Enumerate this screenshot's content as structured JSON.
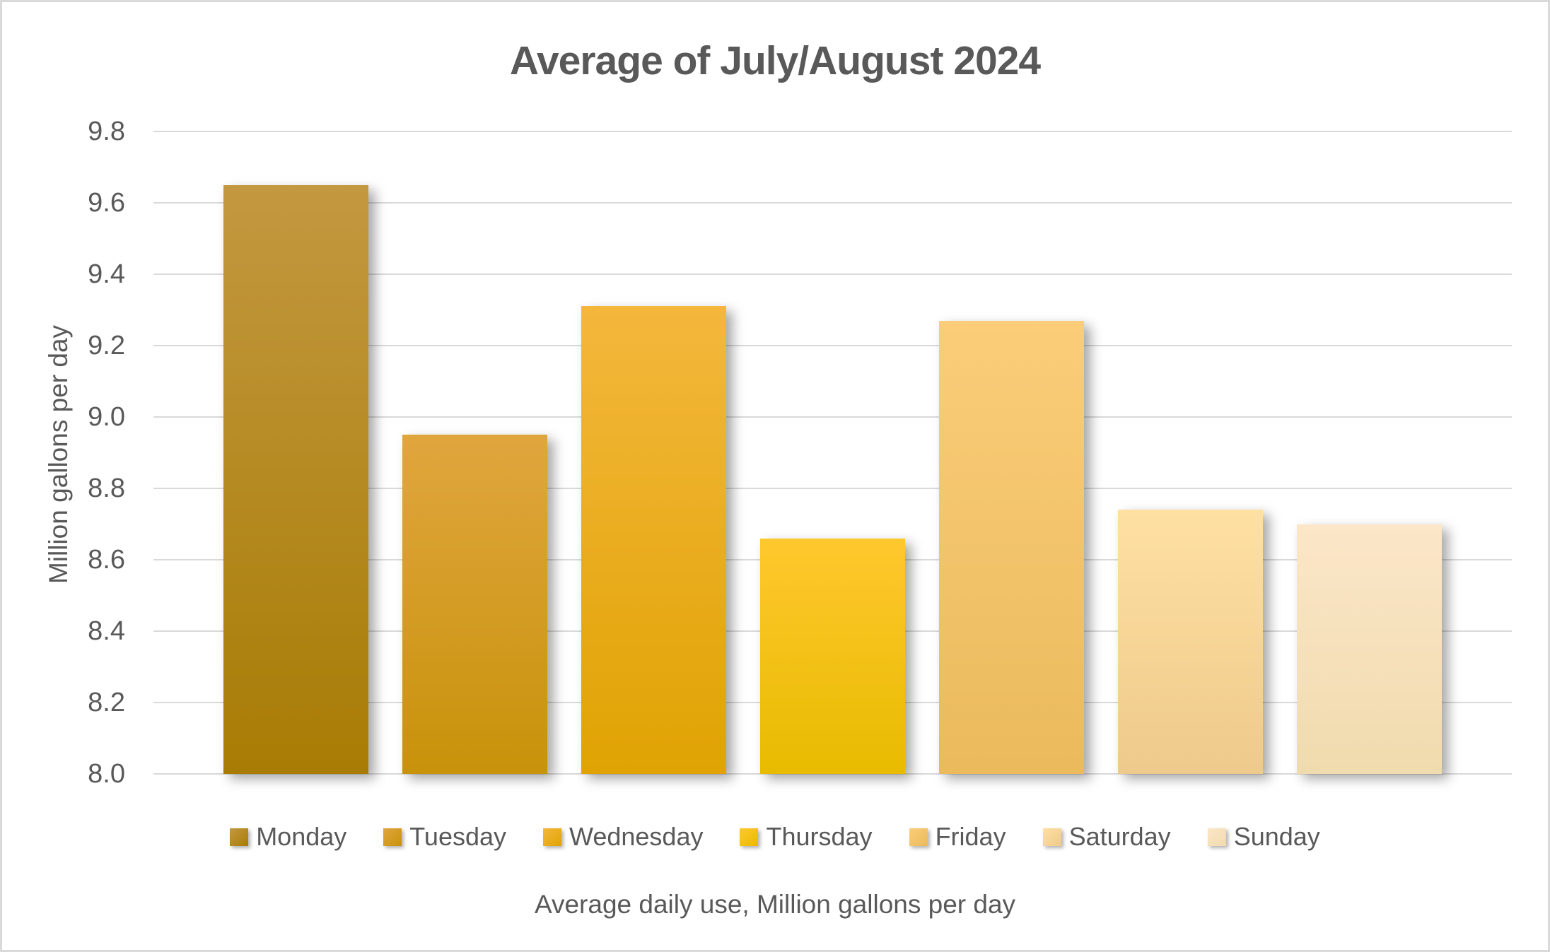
{
  "frame": {
    "border_color": "#D9D9D9",
    "background_color": "#FFFFFF",
    "grid_color": "#D9D9D9",
    "text_color": "#595959"
  },
  "chart_data": {
    "type": "bar",
    "title": "Average of July/August 2024",
    "ylabel": "Million gallons per day",
    "xlabel": "Average daily use, Million gallons per day",
    "ylim": [
      8.0,
      9.8
    ],
    "ytick_step": 0.2,
    "yticks": [
      "8.0",
      "8.2",
      "8.4",
      "8.6",
      "8.8",
      "9.0",
      "9.2",
      "9.4",
      "9.6",
      "9.8"
    ],
    "grid": "horizontal",
    "legend_position": "bottom",
    "categories": [
      "Monday",
      "Tuesday",
      "Wednesday",
      "Thursday",
      "Friday",
      "Saturday",
      "Sunday"
    ],
    "values": [
      9.65,
      8.95,
      9.31,
      8.66,
      9.27,
      8.74,
      8.7
    ],
    "bar_colors": [
      {
        "name": "Monday",
        "top": "#C39840",
        "bottom": "#A87C04"
      },
      {
        "name": "Tuesday",
        "top": "#E0A63E",
        "bottom": "#C8920A"
      },
      {
        "name": "Wednesday",
        "top": "#F4B73C",
        "bottom": "#E0A303"
      },
      {
        "name": "Thursday",
        "top": "#FFC82E",
        "bottom": "#E8BB00"
      },
      {
        "name": "Friday",
        "top": "#FBCD79",
        "bottom": "#EABA5C"
      },
      {
        "name": "Saturday",
        "top": "#FFE0A3",
        "bottom": "#EECA8C"
      },
      {
        "name": "Sunday",
        "top": "#FBE6C8",
        "bottom": "#F0DBAE"
      }
    ]
  }
}
